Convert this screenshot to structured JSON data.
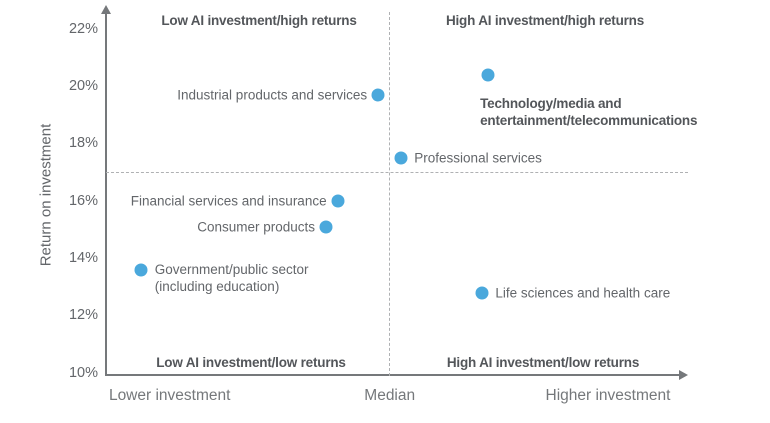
{
  "colors": {
    "dot": "#4AA8DC",
    "label_text": "#63666A",
    "bold_text": "#53565A",
    "axis": "#75787B",
    "dashed_line": "#AFB1B3"
  },
  "chart_data": {
    "type": "scatter",
    "title": "",
    "y_axis": {
      "title": "Return on investment",
      "tick_values": [
        22,
        20,
        18,
        16,
        14,
        12,
        10
      ],
      "tick_labels": [
        "22%",
        "20%",
        "18%",
        "16%",
        "14%",
        "12%",
        "10%"
      ],
      "ylim": [
        10,
        22
      ]
    },
    "x_axis": {
      "label_left": "Lower investment",
      "label_mid": "Median",
      "label_right": "Higher investment",
      "label_left_x_rel": 0.11,
      "label_mid_x_rel": 0.49,
      "label_right_x_rel": 0.867
    },
    "median_lines": {
      "x_rel": 0.49,
      "roi_pct": 17
    },
    "quadrant_labels": {
      "top_left": "Low AI investment/high returns",
      "top_right": "High AI investment/high returns",
      "bottom_left": "Low AI investment/low returns",
      "bottom_right": "High AI investment/low returns"
    },
    "points": [
      {
        "label": "Industrial products and services",
        "lines": [
          "Industrial products and services"
        ],
        "roi_pct": 19.7,
        "x_rel": 0.47,
        "label_side": "left",
        "bold": false
      },
      {
        "label": "Technology/media and entertainment/telecommunications",
        "lines": [
          "Technology/media and",
          "entertainment/telecommunications"
        ],
        "roi_pct": 20.4,
        "x_rel": 0.66,
        "label_side": "below",
        "bold": true
      },
      {
        "label": "Professional services",
        "lines": [
          "Professional services"
        ],
        "roi_pct": 17.5,
        "x_rel": 0.51,
        "label_side": "right",
        "bold": false
      },
      {
        "label": "Financial services and insurance",
        "lines": [
          "Financial services and insurance"
        ],
        "roi_pct": 16.0,
        "x_rel": 0.4,
        "label_side": "left",
        "bold": false
      },
      {
        "label": "Consumer products",
        "lines": [
          "Consumer products"
        ],
        "roi_pct": 15.1,
        "x_rel": 0.38,
        "label_side": "left",
        "bold": false
      },
      {
        "label": "Government/public sector (including education)",
        "lines": [
          "Government/public sector",
          "(including education)"
        ],
        "roi_pct": 13.6,
        "x_rel": 0.06,
        "label_side": "right-top",
        "bold": false
      },
      {
        "label": "Life sciences and health care",
        "lines": [
          "Life sciences and health care"
        ],
        "roi_pct": 12.8,
        "x_rel": 0.65,
        "label_side": "right",
        "bold": false
      }
    ]
  }
}
